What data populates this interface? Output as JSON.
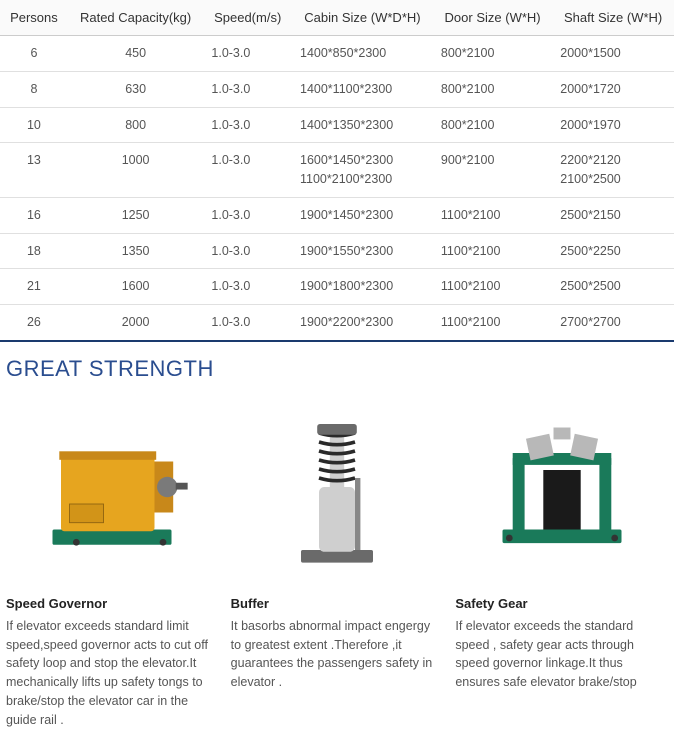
{
  "table": {
    "columns": [
      "Persons",
      "Rated Capacity(kg)",
      "Speed(m/s)",
      "Cabin Size (W*D*H)",
      "Door Size (W*H)",
      "Shaft Size (W*H)"
    ],
    "col_widths": [
      "60px",
      "130px",
      "80px",
      "140px",
      "120px",
      "120px"
    ],
    "header_bg": "#fafafa",
    "border_color": "#e0e0e0",
    "accent_border": "#1a3a6e",
    "rows": [
      {
        "persons": "6",
        "capacity": "450",
        "speed": "1.0-3.0",
        "cabin": "1400*850*2300",
        "door": "800*2100",
        "shaft": "2000*1500"
      },
      {
        "persons": "8",
        "capacity": "630",
        "speed": "1.0-3.0",
        "cabin": "1400*1100*2300",
        "door": "800*2100",
        "shaft": "2000*1720"
      },
      {
        "persons": "10",
        "capacity": "800",
        "speed": "1.0-3.0",
        "cabin": "1400*1350*2300",
        "door": "800*2100",
        "shaft": "2000*1970"
      },
      {
        "persons": "13",
        "capacity": "1000",
        "speed": "1.0-3.0",
        "cabin": "1600*1450*2300\n1100*2100*2300",
        "door": "900*2100",
        "shaft": "2200*2120\n2100*2500"
      },
      {
        "persons": "16",
        "capacity": "1250",
        "speed": "1.0-3.0",
        "cabin": "1900*1450*2300",
        "door": "1100*2100",
        "shaft": "2500*2150"
      },
      {
        "persons": "18",
        "capacity": "1350",
        "speed": "1.0-3.0",
        "cabin": "1900*1550*2300",
        "door": "1100*2100",
        "shaft": "2500*2250"
      },
      {
        "persons": "21",
        "capacity": "1600",
        "speed": "1.0-3.0",
        "cabin": "1900*1800*2300",
        "door": "1100*2100",
        "shaft": "2500*2500"
      },
      {
        "persons": "26",
        "capacity": "2000",
        "speed": "1.0-3.0",
        "cabin": "1900*2200*2300",
        "door": "1100*2100",
        "shaft": "2700*2700"
      }
    ]
  },
  "section_title": "GREAT STRENGTH",
  "section_title_color": "#2a4d8f",
  "features": [
    {
      "icon": "speed-governor-icon",
      "title": "Speed Governor",
      "desc": "If elevator exceeds standard limit speed,speed governor acts to cut off safety loop and stop the elevator.It mechanically lifts up safety tongs to brake/stop the elevator car in the guide rail ."
    },
    {
      "icon": "buffer-icon",
      "title": "Buffer",
      "desc": "It basorbs abnormal impact engergy to greatest extent .Therefore ,it guarantees the passengers safety in elevator ."
    },
    {
      "icon": "safety-gear-icon",
      "title": "Safety Gear",
      "desc": "If elevator exceeds the standard speed , safety gear acts through speed governor linkage.It thus ensures safe elevator brake/stop"
    }
  ],
  "colors": {
    "governor_yellow": "#e6a51f",
    "governor_green": "#1a7a5a",
    "buffer_metal": "#cfcfcf",
    "safety_green": "#1a7a5a"
  }
}
